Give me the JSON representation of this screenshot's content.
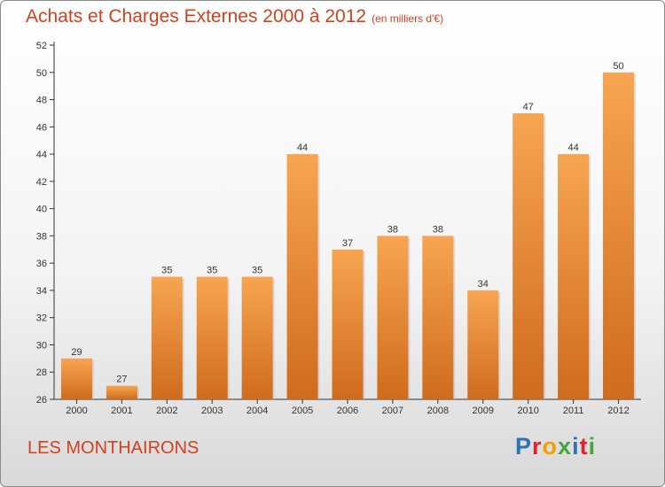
{
  "header": {
    "title": "Achats et Charges Externes 2000 à 2012",
    "unit": "(en milliers d'€)"
  },
  "footer": {
    "commune": "LES MONTHAIRONS",
    "logo_letters": [
      "P",
      "r",
      "o",
      "x",
      "i",
      "t",
      "i"
    ]
  },
  "colors": {
    "title": "#d2401e",
    "bar_top": "#f7a552",
    "bar_bottom": "#cf6b1d",
    "logo": [
      "#2d72b8",
      "#e0222a",
      "#f2a000",
      "#41a83c",
      "#2d72b8",
      "#e0222a",
      "#41a83c"
    ]
  },
  "chart_data": {
    "type": "bar",
    "title": "Achats et Charges Externes 2000 à 2012",
    "subtitle": "(en milliers d'€)",
    "categories": [
      "2000",
      "2001",
      "2002",
      "2003",
      "2004",
      "2005",
      "2006",
      "2007",
      "2008",
      "2009",
      "2010",
      "2011",
      "2012"
    ],
    "values": [
      29,
      27,
      35,
      35,
      35,
      44,
      37,
      38,
      38,
      34,
      47,
      44,
      50
    ],
    "ylim": [
      26,
      52
    ],
    "yticks": [
      26,
      28,
      30,
      32,
      34,
      36,
      38,
      40,
      42,
      44,
      46,
      48,
      50,
      52
    ],
    "grid": false,
    "legend": "none"
  }
}
